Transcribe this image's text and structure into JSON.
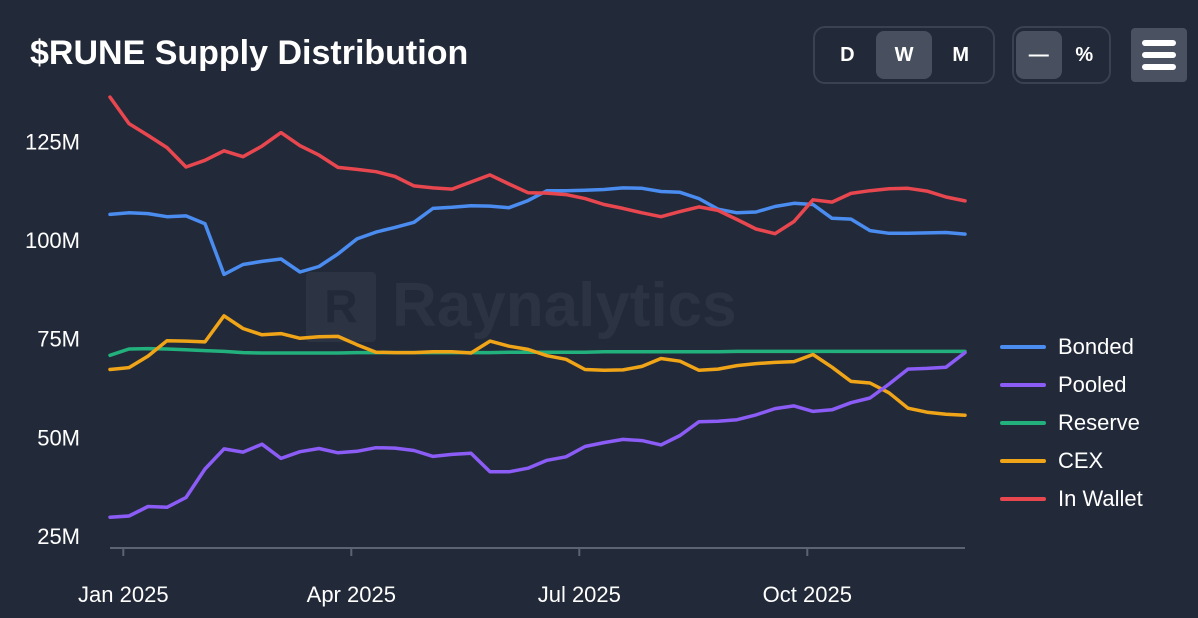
{
  "header": {
    "title": "$RUNE Supply Distribution"
  },
  "controls": {
    "period": [
      {
        "label": "D",
        "active": false
      },
      {
        "label": "W",
        "active": true
      },
      {
        "label": "M",
        "active": false
      }
    ],
    "mode": [
      {
        "label": "—",
        "active": true
      },
      {
        "label": "%",
        "active": false
      }
    ],
    "menu_icon": "hamburger-menu-icon"
  },
  "watermark": {
    "text": "Raynalytics",
    "logo_letter": "R"
  },
  "colors": {
    "background": "#222938",
    "axis": "#5c6474",
    "Bonded": "#4a8cf0",
    "Pooled": "#8b5cf6",
    "Reserve": "#22b07d",
    "CEX": "#f0a418",
    "In Wallet": "#e8474f"
  },
  "chart_data": {
    "type": "line",
    "title": "$RUNE Supply Distribution",
    "xlabel": "",
    "ylabel": "",
    "x_ticks": [
      "Jan 2025",
      "Apr 2025",
      "Jul 2025",
      "Oct 2025"
    ],
    "y_ticks": [
      "25M",
      "50M",
      "75M",
      "100M",
      "125M"
    ],
    "y_tick_values": [
      25,
      50,
      75,
      100,
      125
    ],
    "ylim": [
      22,
      138
    ],
    "xlim": [
      0,
      45
    ],
    "x_tick_positions": [
      0.7,
      12.7,
      24.7,
      36.7
    ],
    "grid": false,
    "legend_position": "right",
    "x": [
      0,
      1,
      2,
      3,
      4,
      5,
      6,
      7,
      8,
      9,
      10,
      11,
      12,
      13,
      14,
      15,
      16,
      17,
      18,
      19,
      20,
      21,
      22,
      23,
      24,
      25,
      26,
      27,
      28,
      29,
      30,
      31,
      32,
      33,
      34,
      35,
      36,
      37,
      38,
      39,
      40,
      41,
      42,
      43,
      44,
      45
    ],
    "series": [
      {
        "name": "Bonded",
        "values": [
          106.5,
          106.9,
          106.7,
          105.9,
          106.1,
          104.1,
          91.3,
          93.8,
          94.6,
          95.2,
          91.9,
          93.3,
          96.5,
          100.3,
          102.0,
          103.2,
          104.5,
          108.0,
          108.3,
          108.7,
          108.6,
          108.2,
          110.0,
          112.5,
          112.5,
          112.6,
          112.8,
          113.2,
          113.1,
          112.3,
          112.1,
          110.5,
          107.8,
          106.9,
          107.1,
          108.5,
          109.3,
          109.0,
          105.5,
          105.3,
          102.4,
          101.7,
          101.7,
          101.8,
          101.9,
          101.5
        ]
      },
      {
        "name": "Pooled",
        "values": [
          29.8,
          30.1,
          32.5,
          32.3,
          34.8,
          42.0,
          47.1,
          46.3,
          48.3,
          44.7,
          46.4,
          47.2,
          46.1,
          46.5,
          47.4,
          47.3,
          46.7,
          45.2,
          45.7,
          46.0,
          41.3,
          41.3,
          42.2,
          44.2,
          45.1,
          47.7,
          48.7,
          49.5,
          49.2,
          48.1,
          50.5,
          54.0,
          54.1,
          54.5,
          55.7,
          57.3,
          58.0,
          56.6,
          57.0,
          58.8,
          60.0,
          63.5,
          67.3,
          67.5,
          67.8,
          71.5
        ]
      },
      {
        "name": "Reserve",
        "values": [
          70.8,
          72.4,
          72.5,
          72.4,
          72.2,
          72.0,
          71.8,
          71.5,
          71.4,
          71.4,
          71.4,
          71.4,
          71.4,
          71.5,
          71.5,
          71.5,
          71.5,
          71.5,
          71.5,
          71.5,
          71.5,
          71.6,
          71.6,
          71.6,
          71.6,
          71.6,
          71.7,
          71.7,
          71.7,
          71.7,
          71.7,
          71.7,
          71.7,
          71.8,
          71.8,
          71.8,
          71.8,
          71.8,
          71.8,
          71.8,
          71.8,
          71.8,
          71.8,
          71.8,
          71.8,
          71.8
        ]
      },
      {
        "name": "CEX",
        "values": [
          67.2,
          67.7,
          70.6,
          74.5,
          74.4,
          74.2,
          80.8,
          77.6,
          76.0,
          76.3,
          75.1,
          75.5,
          75.6,
          73.5,
          71.6,
          71.5,
          71.5,
          71.7,
          71.7,
          71.4,
          74.4,
          73.1,
          72.3,
          70.7,
          69.8,
          67.2,
          67.0,
          67.1,
          68.0,
          70.0,
          69.3,
          67.0,
          67.3,
          68.2,
          68.7,
          69.0,
          69.2,
          71.0,
          67.8,
          64.2,
          63.8,
          61.3,
          57.4,
          56.4,
          55.9,
          55.6
        ]
      },
      {
        "name": "In Wallet",
        "values": [
          136.2,
          129.5,
          126.5,
          123.4,
          118.5,
          120.2,
          122.6,
          121.1,
          123.8,
          127.2,
          123.9,
          121.5,
          118.4,
          117.9,
          117.3,
          116.1,
          113.7,
          113.2,
          112.9,
          114.7,
          116.5,
          114.2,
          112.0,
          111.9,
          111.5,
          110.5,
          109.0,
          108.0,
          106.9,
          105.9,
          107.2,
          108.4,
          107.5,
          105.2,
          102.8,
          101.6,
          104.7,
          110.2,
          109.6,
          111.8,
          112.5,
          113.0,
          113.1,
          112.4,
          110.9,
          109.9
        ]
      }
    ]
  },
  "legend": {
    "items": [
      {
        "label": "Bonded"
      },
      {
        "label": "Pooled"
      },
      {
        "label": "Reserve"
      },
      {
        "label": "CEX"
      },
      {
        "label": "In Wallet"
      }
    ]
  }
}
